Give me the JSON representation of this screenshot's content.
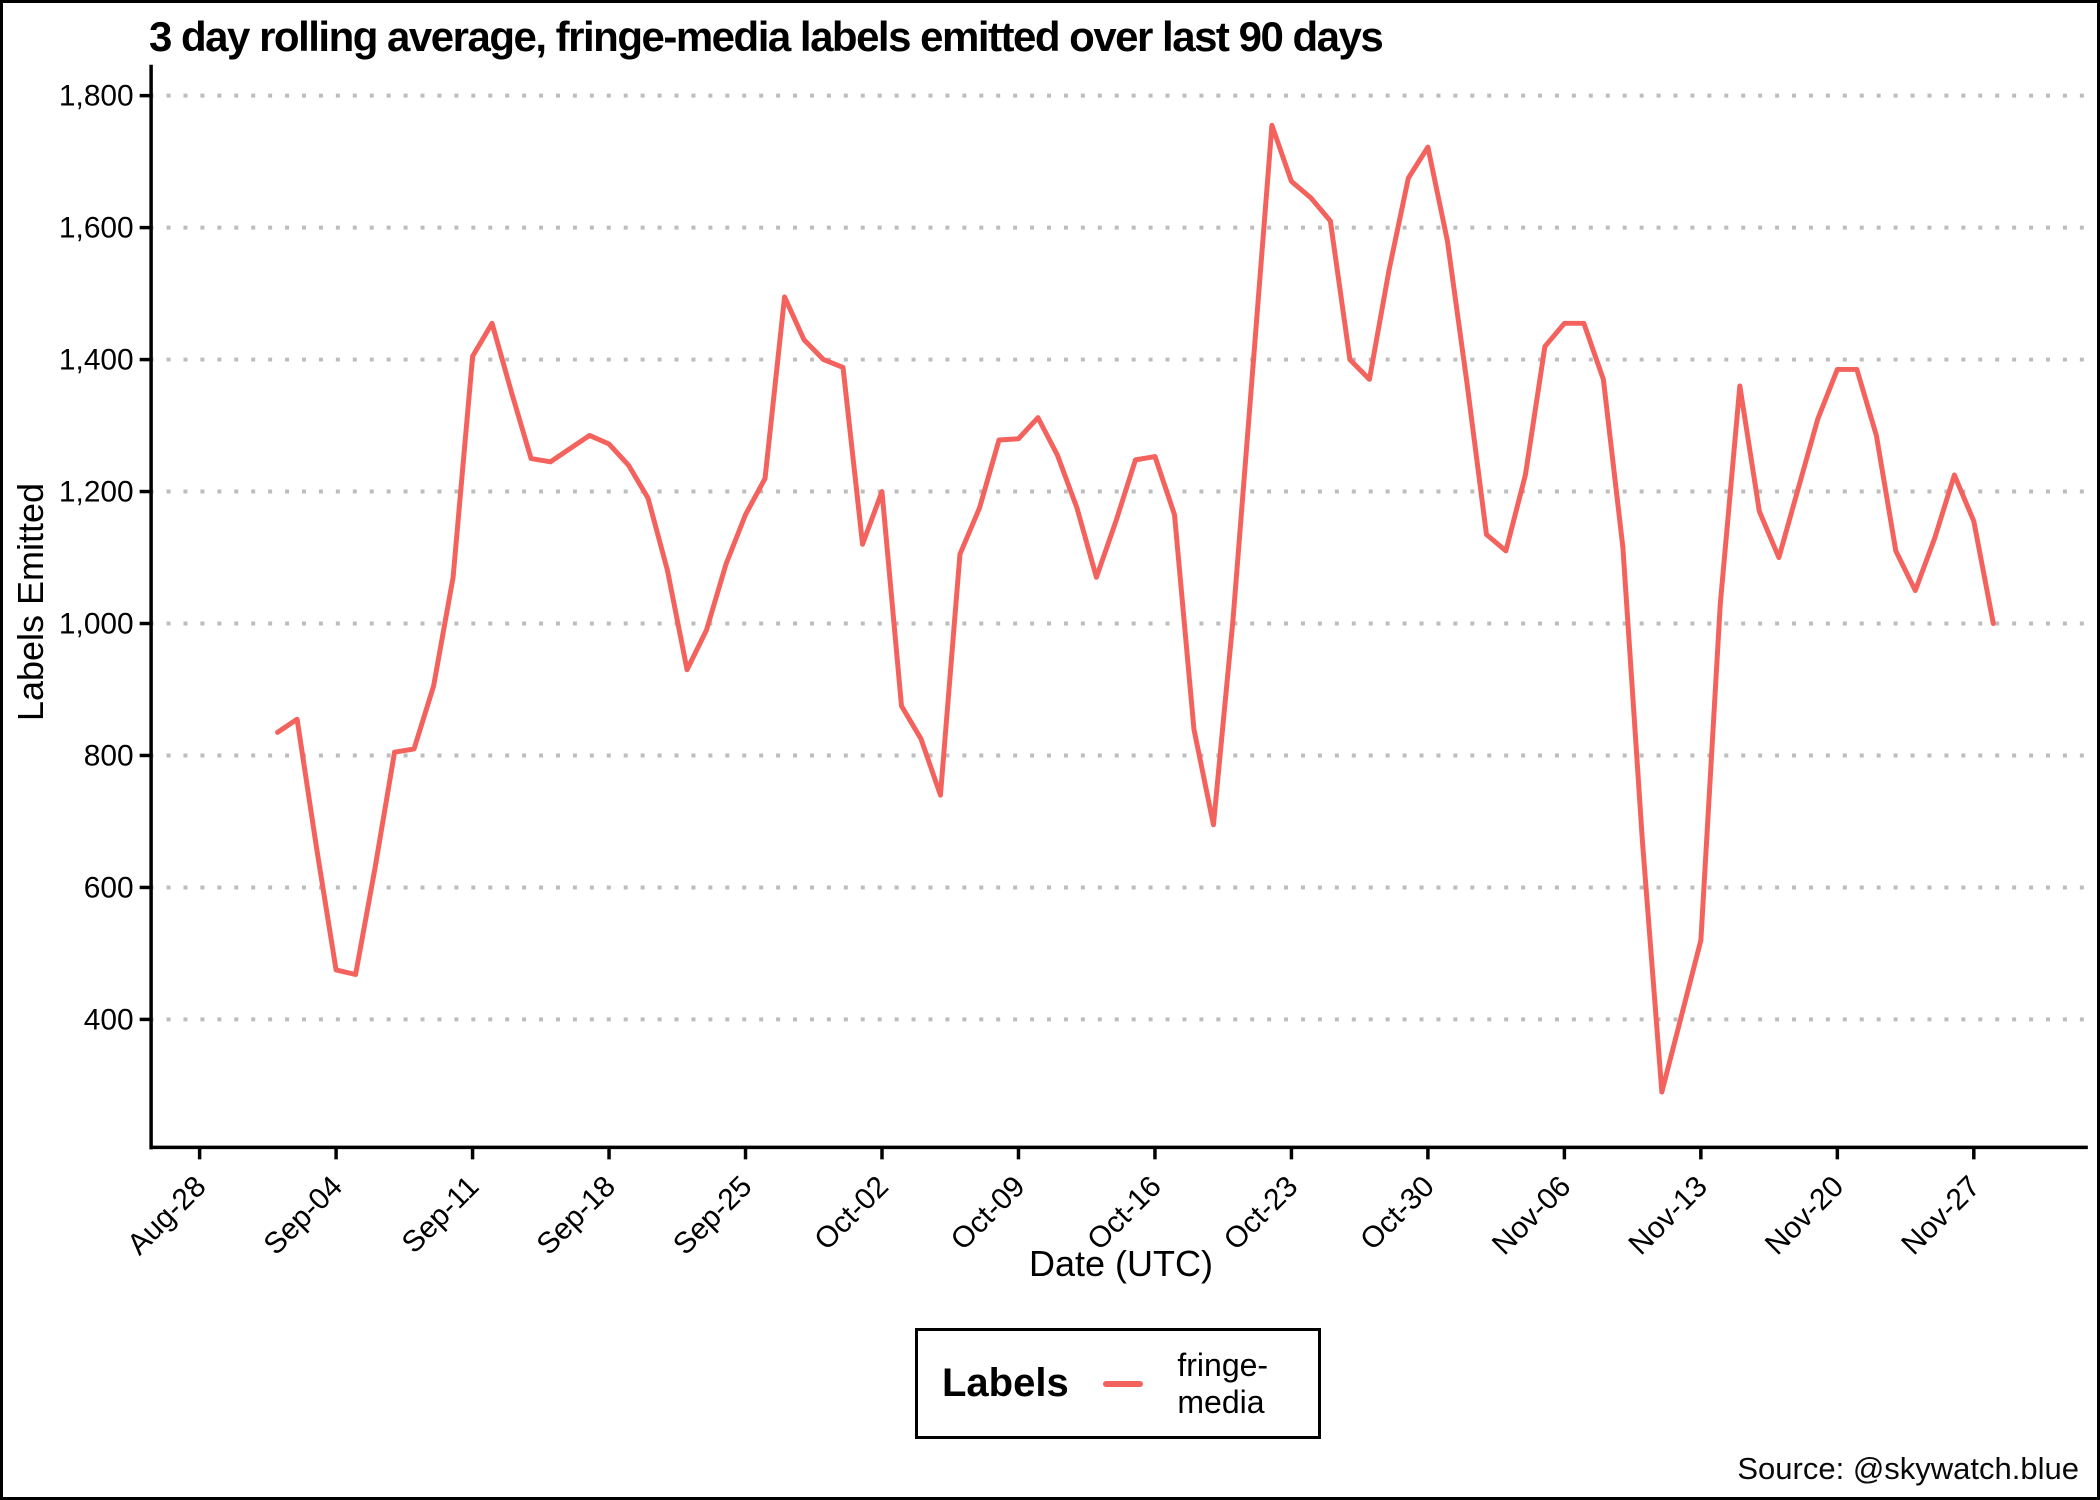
{
  "title": "3 day rolling average, fringe-media labels emitted over last 90 days",
  "source_note": "Source: @skywatch.blue",
  "colors": {
    "line": "#F4625D",
    "grid": "#BDBDBD",
    "axis": "#000000",
    "text": "#000000",
    "background": "#FFFFFF"
  },
  "legend": {
    "title": "Labels",
    "series_label": "fringe-media"
  },
  "chart_data": {
    "type": "line",
    "title": "3 day rolling average, fringe-media labels emitted over last 90 days",
    "xlabel": "Date (UTC)",
    "ylabel": "Labels Emitted",
    "ylim": [
      200,
      1850
    ],
    "grid": "horizontal-dotted",
    "legend_position": "bottom",
    "yticks": [
      {
        "value": 400,
        "label": "400"
      },
      {
        "value": 600,
        "label": "600"
      },
      {
        "value": 800,
        "label": "800"
      },
      {
        "value": 1000,
        "label": "1,000"
      },
      {
        "value": 1200,
        "label": "1,200"
      },
      {
        "value": 1400,
        "label": "1,400"
      },
      {
        "value": 1600,
        "label": "1,600"
      },
      {
        "value": 1800,
        "label": "1,800"
      }
    ],
    "xticks": [
      {
        "day": 0,
        "label": "Aug-28"
      },
      {
        "day": 7,
        "label": "Sep-04"
      },
      {
        "day": 14,
        "label": "Sep-11"
      },
      {
        "day": 21,
        "label": "Sep-18"
      },
      {
        "day": 28,
        "label": "Sep-25"
      },
      {
        "day": 35,
        "label": "Oct-02"
      },
      {
        "day": 42,
        "label": "Oct-09"
      },
      {
        "day": 49,
        "label": "Oct-16"
      },
      {
        "day": 56,
        "label": "Oct-23"
      },
      {
        "day": 63,
        "label": "Oct-30"
      },
      {
        "day": 70,
        "label": "Nov-06"
      },
      {
        "day": 77,
        "label": "Nov-13"
      },
      {
        "day": 84,
        "label": "Nov-20"
      },
      {
        "day": 91,
        "label": "Nov-27"
      }
    ],
    "series": [
      {
        "name": "fringe-media",
        "color": "#F4625D",
        "start_day_offset": 4,
        "dates": [
          "Sep-01",
          "Sep-02",
          "Sep-03",
          "Sep-04",
          "Sep-05",
          "Sep-06",
          "Sep-07",
          "Sep-08",
          "Sep-09",
          "Sep-10",
          "Sep-11",
          "Sep-12",
          "Sep-13",
          "Sep-14",
          "Sep-15",
          "Sep-16",
          "Sep-17",
          "Sep-18",
          "Sep-19",
          "Sep-20",
          "Sep-21",
          "Sep-22",
          "Sep-23",
          "Sep-24",
          "Sep-25",
          "Sep-26",
          "Sep-27",
          "Sep-28",
          "Sep-29",
          "Sep-30",
          "Oct-01",
          "Oct-02",
          "Oct-03",
          "Oct-04",
          "Oct-05",
          "Oct-06",
          "Oct-07",
          "Oct-08",
          "Oct-09",
          "Oct-10",
          "Oct-11",
          "Oct-12",
          "Oct-13",
          "Oct-14",
          "Oct-15",
          "Oct-16",
          "Oct-17",
          "Oct-18",
          "Oct-19",
          "Oct-20",
          "Oct-21",
          "Oct-22",
          "Oct-23",
          "Oct-24",
          "Oct-25",
          "Oct-26",
          "Oct-27",
          "Oct-28",
          "Oct-29",
          "Oct-30",
          "Oct-31",
          "Nov-01",
          "Nov-02",
          "Nov-03",
          "Nov-04",
          "Nov-05",
          "Nov-06",
          "Nov-07",
          "Nov-08",
          "Nov-09",
          "Nov-10",
          "Nov-11",
          "Nov-12",
          "Nov-13",
          "Nov-14",
          "Nov-15",
          "Nov-16",
          "Nov-17",
          "Nov-18",
          "Nov-19",
          "Nov-20",
          "Nov-21",
          "Nov-22",
          "Nov-23",
          "Nov-24",
          "Nov-25",
          "Nov-26",
          "Nov-27",
          "Nov-28"
        ],
        "values": [
          835,
          855,
          660,
          475,
          468,
          630,
          805,
          810,
          905,
          1070,
          1405,
          1455,
          1350,
          1250,
          1245,
          1265,
          1285,
          1272,
          1240,
          1190,
          1080,
          930,
          990,
          1090,
          1165,
          1220,
          1495,
          1430,
          1400,
          1388,
          1120,
          1200,
          875,
          825,
          740,
          1105,
          1175,
          1278,
          1280,
          1312,
          1255,
          1175,
          1070,
          1155,
          1248,
          1253,
          1165,
          840,
          695,
          1005,
          1380,
          1755,
          1670,
          1645,
          1610,
          1400,
          1370,
          1535,
          1675,
          1722,
          1580,
          1365,
          1135,
          1110,
          1225,
          1420,
          1455,
          1455,
          1370,
          1115,
          670,
          290,
          405,
          520,
          1030,
          1360,
          1170,
          1100,
          1205,
          1310,
          1385,
          1385,
          1285,
          1110,
          1050,
          1130,
          1225,
          1155,
          1000
        ]
      }
    ]
  }
}
